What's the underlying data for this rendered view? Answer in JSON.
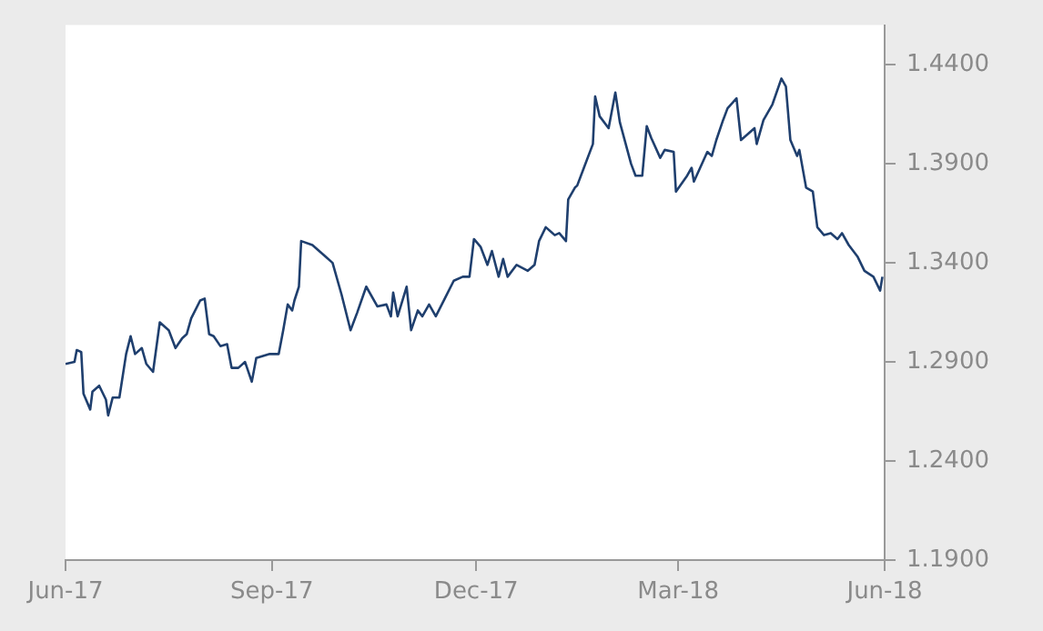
{
  "chart_data": {
    "type": "line",
    "x": [
      "2017-06-01",
      "2017-06-05",
      "2017-06-06",
      "2017-06-08",
      "2017-06-09",
      "2017-06-12",
      "2017-06-13",
      "2017-06-16",
      "2017-06-19",
      "2017-06-20",
      "2017-06-22",
      "2017-06-25",
      "2017-06-28",
      "2017-06-30",
      "2017-07-02",
      "2017-07-05",
      "2017-07-07",
      "2017-07-10",
      "2017-07-13",
      "2017-07-17",
      "2017-07-20",
      "2017-07-23",
      "2017-07-25",
      "2017-07-27",
      "2017-07-31",
      "2017-08-02",
      "2017-08-04",
      "2017-08-06",
      "2017-08-09",
      "2017-08-12",
      "2017-08-14",
      "2017-08-17",
      "2017-08-20",
      "2017-08-23",
      "2017-08-25",
      "2017-08-31",
      "2017-09-04",
      "2017-09-06",
      "2017-09-08",
      "2017-09-10",
      "2017-09-11",
      "2017-09-13",
      "2017-09-14",
      "2017-09-19",
      "2017-09-25",
      "2017-09-28",
      "2017-10-02",
      "2017-10-06",
      "2017-10-09",
      "2017-10-13",
      "2017-10-18",
      "2017-10-22",
      "2017-10-24",
      "2017-10-25",
      "2017-10-27",
      "2017-10-31",
      "2017-11-02",
      "2017-11-05",
      "2017-11-07",
      "2017-11-10",
      "2017-11-13",
      "2017-11-17",
      "2017-11-21",
      "2017-11-25",
      "2017-11-28",
      "2017-11-30",
      "2017-12-03",
      "2017-12-06",
      "2017-12-08",
      "2017-12-11",
      "2017-12-13",
      "2017-12-15",
      "2017-12-19",
      "2017-12-24",
      "2017-12-27",
      "2017-12-29",
      "2018-01-01",
      "2018-01-05",
      "2018-01-07",
      "2018-01-10",
      "2018-01-11",
      "2018-01-14",
      "2018-01-15",
      "2018-01-18",
      "2018-01-22",
      "2018-01-23",
      "2018-01-25",
      "2018-01-29",
      "2018-02-01",
      "2018-02-03",
      "2018-02-08",
      "2018-02-10",
      "2018-02-13",
      "2018-02-15",
      "2018-02-17",
      "2018-02-21",
      "2018-02-23",
      "2018-02-27",
      "2018-02-28",
      "2018-03-05",
      "2018-03-07",
      "2018-03-08",
      "2018-03-14",
      "2018-03-16",
      "2018-03-18",
      "2018-03-21",
      "2018-03-23",
      "2018-03-27",
      "2018-03-29",
      "2018-04-04",
      "2018-04-05",
      "2018-04-08",
      "2018-04-12",
      "2018-04-16",
      "2018-04-18",
      "2018-04-20",
      "2018-04-23",
      "2018-04-24",
      "2018-04-27",
      "2018-04-30",
      "2018-05-02",
      "2018-05-05",
      "2018-05-08",
      "2018-05-11",
      "2018-05-13",
      "2018-05-16",
      "2018-05-20",
      "2018-05-23",
      "2018-05-27",
      "2018-05-30",
      "2018-05-31"
    ],
    "series": [
      {
        "color": "#1f3f6e",
        "values": [
          1.289,
          1.29,
          1.296,
          1.295,
          1.274,
          1.266,
          1.275,
          1.278,
          1.271,
          1.263,
          1.272,
          1.272,
          1.294,
          1.303,
          1.294,
          1.297,
          1.289,
          1.285,
          1.31,
          1.306,
          1.297,
          1.302,
          1.304,
          1.312,
          1.321,
          1.322,
          1.304,
          1.303,
          1.298,
          1.299,
          1.287,
          1.287,
          1.29,
          1.28,
          1.292,
          1.294,
          1.294,
          1.306,
          1.319,
          1.316,
          1.321,
          1.328,
          1.351,
          1.349,
          1.343,
          1.34,
          1.324,
          1.306,
          1.315,
          1.328,
          1.318,
          1.319,
          1.313,
          1.325,
          1.313,
          1.328,
          1.306,
          1.316,
          1.313,
          1.319,
          1.313,
          1.322,
          1.331,
          1.333,
          1.333,
          1.352,
          1.348,
          1.339,
          1.346,
          1.333,
          1.342,
          1.333,
          1.339,
          1.336,
          1.339,
          1.351,
          1.358,
          1.354,
          1.355,
          1.351,
          1.372,
          1.378,
          1.379,
          1.388,
          1.4,
          1.424,
          1.414,
          1.408,
          1.426,
          1.411,
          1.39,
          1.384,
          1.384,
          1.409,
          1.403,
          1.393,
          1.397,
          1.396,
          1.376,
          1.384,
          1.388,
          1.381,
          1.396,
          1.394,
          1.402,
          1.412,
          1.418,
          1.423,
          1.402,
          1.408,
          1.4,
          1.412,
          1.42,
          1.433,
          1.429,
          1.402,
          1.394,
          1.397,
          1.378,
          1.376,
          1.358,
          1.354,
          1.355,
          1.352,
          1.355,
          1.349,
          1.343,
          1.336,
          1.333,
          1.326,
          1.333
        ]
      }
    ],
    "xlim": [
      "2017-06-01",
      "2018-06-01"
    ],
    "xticks": [
      {
        "value": "2017-06-01",
        "label": "Jun-17"
      },
      {
        "value": "2017-09-01",
        "label": "Sep-17"
      },
      {
        "value": "2017-12-01",
        "label": "Dec-17"
      },
      {
        "value": "2018-03-01",
        "label": "Mar-18"
      },
      {
        "value": "2018-06-01",
        "label": "Jun-18"
      }
    ],
    "ylim": [
      1.19,
      1.46
    ],
    "yticks": [
      {
        "value": 1.19,
        "label": "1.1900"
      },
      {
        "value": 1.24,
        "label": "1.2400"
      },
      {
        "value": 1.29,
        "label": "1.2900"
      },
      {
        "value": 1.34,
        "label": "1.3400"
      },
      {
        "value": 1.39,
        "label": "1.3900"
      },
      {
        "value": 1.44,
        "label": "1.4400"
      }
    ],
    "marker": "none",
    "line_style": "solid",
    "legend": false
  }
}
